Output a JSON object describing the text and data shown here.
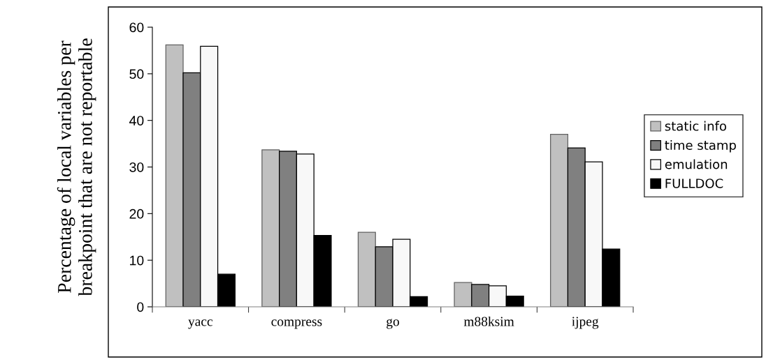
{
  "chart_data": {
    "type": "bar",
    "ylabel": "Percentage of local variables per\nbreakpoint that are not reportable",
    "categories": [
      "yacc",
      "compress",
      "go",
      "m88ksim",
      "ijpeg"
    ],
    "series": [
      {
        "name": "static info",
        "color": "#c0c0c0",
        "values": [
          56.2,
          33.7,
          16.0,
          5.2,
          37.0
        ]
      },
      {
        "name": "time stamp",
        "color": "#808080",
        "values": [
          50.2,
          33.4,
          12.9,
          4.8,
          34.1
        ]
      },
      {
        "name": "emulation",
        "color": "#f8f8f8",
        "values": [
          55.9,
          32.8,
          14.5,
          4.5,
          31.1
        ]
      },
      {
        "name": "FULLDOC",
        "color": "#000000",
        "values": [
          7.0,
          15.3,
          2.2,
          2.3,
          12.4
        ]
      }
    ],
    "ylim": [
      0,
      60
    ],
    "yticks": [
      0,
      10,
      20,
      30,
      40,
      50,
      60
    ],
    "grid": false,
    "legend": "right"
  }
}
